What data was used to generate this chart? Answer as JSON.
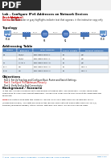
{
  "title_black": "Lab – Configure IPv6 Addresses on Network Devices ",
  "title_red": "(Instructor",
  "title_red2": "Version)",
  "instructor_note_label": "Instructor Note: ",
  "instructor_note_text": "Red font color or gray highlights indicate text that appears in the instructor copy only.",
  "section_topology": "Topology",
  "section_addressing": "Addressing Table",
  "table_headers": [
    "Device",
    "Interface",
    "IPv6 Address",
    "Prefix Length",
    "Default Gateway"
  ],
  "table_rows": [
    [
      "R1",
      "G0/0/0",
      "2001:db8:acad:a::1",
      "64",
      "N/A"
    ],
    [
      "",
      "G0/0/1",
      "2001:db8:acad:1::1",
      "64",
      "N/A"
    ],
    [
      "S1",
      "VLAN 1",
      "2001:db8:acad:1::b",
      "64",
      "N/A"
    ],
    [
      "PC-A",
      "NIC",
      "2001:db8:acad:1::3",
      "64",
      "fe80::1"
    ],
    [
      "PC-B",
      "NIC",
      "2001:db8:acad:a::3",
      "64",
      "fe80::1"
    ]
  ],
  "section_objectives": "Objectives",
  "objectives": [
    "Part 1: Set Up Topology and Configure Basic Router and Switch Settings",
    "Part 2: Configure IPv6 Addresses Manually",
    "Part 3: Verify End-to-End Connectivity"
  ],
  "section_background": "Background / Scenario",
  "background_lines": [
    "In this lab, you will configure hosts and devices interfaces with IPv6 addresses. You will issue show",
    "commands to verify IPv6 unicast addresses. You will also verify end-to-end connectivity using ping and",
    "traceroute."
  ],
  "note1_label": "Note: ",
  "note1_text": "The routers used with this hands-on lab are Cisco 4221 with Cisco IOS XE Release 16.9.4 (universalk9 image). The switches used in this lab are Cisco Catalyst 2960s with Cisco IOS 15.2(2) Release (lanbasek9 image). Other routers, switches, and Cisco IOS versions can be used. Depending on the model and Cisco IOS version, the commands available and the output produced might vary from what is shown in labs. Refer to the Router Interface Summary Table at the end for the correct interface identifiers.",
  "footer": "© 2013 - 2020 Cisco and/or its affiliates. All rights reserved. Cisco Confidential",
  "footer_page": "Page 1 of 6",
  "bg_color": "#ffffff",
  "header_bg": "#2d2d2d",
  "header_right_bg": "#f0f0f0",
  "table_header_bg": "#4f81bd",
  "table_row0_bg": "#dce6f1",
  "table_row1_bg": "#ffffff",
  "title_color": "#c00000",
  "note_label_color": "#c00000",
  "footer_color": "#0070c0",
  "obj2_color": "#c00000",
  "topology_wire_color": "#888888",
  "topology_label_color": "#555555"
}
